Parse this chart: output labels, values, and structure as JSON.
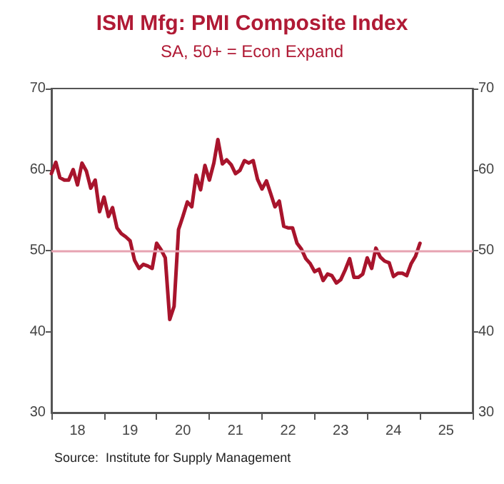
{
  "chart_data": {
    "type": "line",
    "title": "ISM Mfg: PMI Composite Index",
    "subtitle": "SA, 50+ = Econ Expand",
    "annotations": [
      "Source:  Institute for Supply Management"
    ],
    "x": [
      "2018-01",
      "2018-02",
      "2018-03",
      "2018-04",
      "2018-05",
      "2018-06",
      "2018-07",
      "2018-08",
      "2018-09",
      "2018-10",
      "2018-11",
      "2018-12",
      "2019-01",
      "2019-02",
      "2019-03",
      "2019-04",
      "2019-05",
      "2019-06",
      "2019-07",
      "2019-08",
      "2019-09",
      "2019-10",
      "2019-11",
      "2019-12",
      "2020-01",
      "2020-02",
      "2020-03",
      "2020-04",
      "2020-05",
      "2020-06",
      "2020-07",
      "2020-08",
      "2020-09",
      "2020-10",
      "2020-11",
      "2020-12",
      "2021-01",
      "2021-02",
      "2021-03",
      "2021-04",
      "2021-05",
      "2021-06",
      "2021-07",
      "2021-08",
      "2021-09",
      "2021-10",
      "2021-11",
      "2021-12",
      "2022-01",
      "2022-02",
      "2022-03",
      "2022-04",
      "2022-05",
      "2022-06",
      "2022-07",
      "2022-08",
      "2022-09",
      "2022-10",
      "2022-11",
      "2022-12",
      "2023-01",
      "2023-02",
      "2023-03",
      "2023-04",
      "2023-05",
      "2023-06",
      "2023-07",
      "2023-08",
      "2023-09",
      "2023-10",
      "2023-11",
      "2023-12",
      "2024-01",
      "2024-02",
      "2024-03",
      "2024-04",
      "2024-05",
      "2024-06",
      "2024-07",
      "2024-08",
      "2024-09",
      "2024-10",
      "2024-11",
      "2024-12",
      "2025-01"
    ],
    "series": [
      {
        "color": "#a8142c",
        "values": [
          59.5,
          60.9,
          59.0,
          58.7,
          58.7,
          60.0,
          58.1,
          60.8,
          59.8,
          57.7,
          58.7,
          54.8,
          56.6,
          54.2,
          55.3,
          52.8,
          52.1,
          51.7,
          51.2,
          48.8,
          47.8,
          48.3,
          48.1,
          47.8,
          50.9,
          50.1,
          49.1,
          41.5,
          43.1,
          52.6,
          54.2,
          56.0,
          55.4,
          59.3,
          57.5,
          60.5,
          58.7,
          60.8,
          63.7,
          60.7,
          61.2,
          60.6,
          59.5,
          59.9,
          61.1,
          60.8,
          61.1,
          58.8,
          57.6,
          58.6,
          57.1,
          55.4,
          56.1,
          53.0,
          52.8,
          52.8,
          50.9,
          50.2,
          49.0,
          48.4,
          47.4,
          47.7,
          46.3,
          47.1,
          46.9,
          46.0,
          46.4,
          47.6,
          49.0,
          46.7,
          46.7,
          47.1,
          49.1,
          47.8,
          50.3,
          49.2,
          48.7,
          48.5,
          46.8,
          47.2,
          47.2,
          46.9,
          48.4,
          49.3,
          50.9
        ]
      }
    ],
    "xlim": [
      "2018-01",
      "2026-01"
    ],
    "xticks": [
      {
        "value": "2018-01",
        "label": null
      },
      {
        "value": "2018-07",
        "label": "18"
      },
      {
        "value": "2019-01",
        "label": null
      },
      {
        "value": "2019-07",
        "label": "19"
      },
      {
        "value": "2020-01",
        "label": null
      },
      {
        "value": "2020-07",
        "label": "20"
      },
      {
        "value": "2021-01",
        "label": null
      },
      {
        "value": "2021-07",
        "label": "21"
      },
      {
        "value": "2022-01",
        "label": null
      },
      {
        "value": "2022-07",
        "label": "22"
      },
      {
        "value": "2023-01",
        "label": null
      },
      {
        "value": "2023-07",
        "label": "23"
      },
      {
        "value": "2024-01",
        "label": null
      },
      {
        "value": "2024-07",
        "label": "24"
      },
      {
        "value": "2025-01",
        "label": null
      },
      {
        "value": "2025-07",
        "label": "25"
      },
      {
        "value": "2026-01",
        "label": null
      }
    ],
    "ylim": [
      30,
      70
    ],
    "yticks": [
      30,
      40,
      50,
      60,
      70
    ],
    "y2lim": [
      30,
      70
    ],
    "y2ticks": [
      30,
      40,
      50,
      60,
      70
    ],
    "ref_lines": [
      {
        "axis": "y",
        "value": 50,
        "color": "#e7a3b2"
      }
    ],
    "grid": false,
    "marker": "none",
    "line_style": "solid"
  }
}
